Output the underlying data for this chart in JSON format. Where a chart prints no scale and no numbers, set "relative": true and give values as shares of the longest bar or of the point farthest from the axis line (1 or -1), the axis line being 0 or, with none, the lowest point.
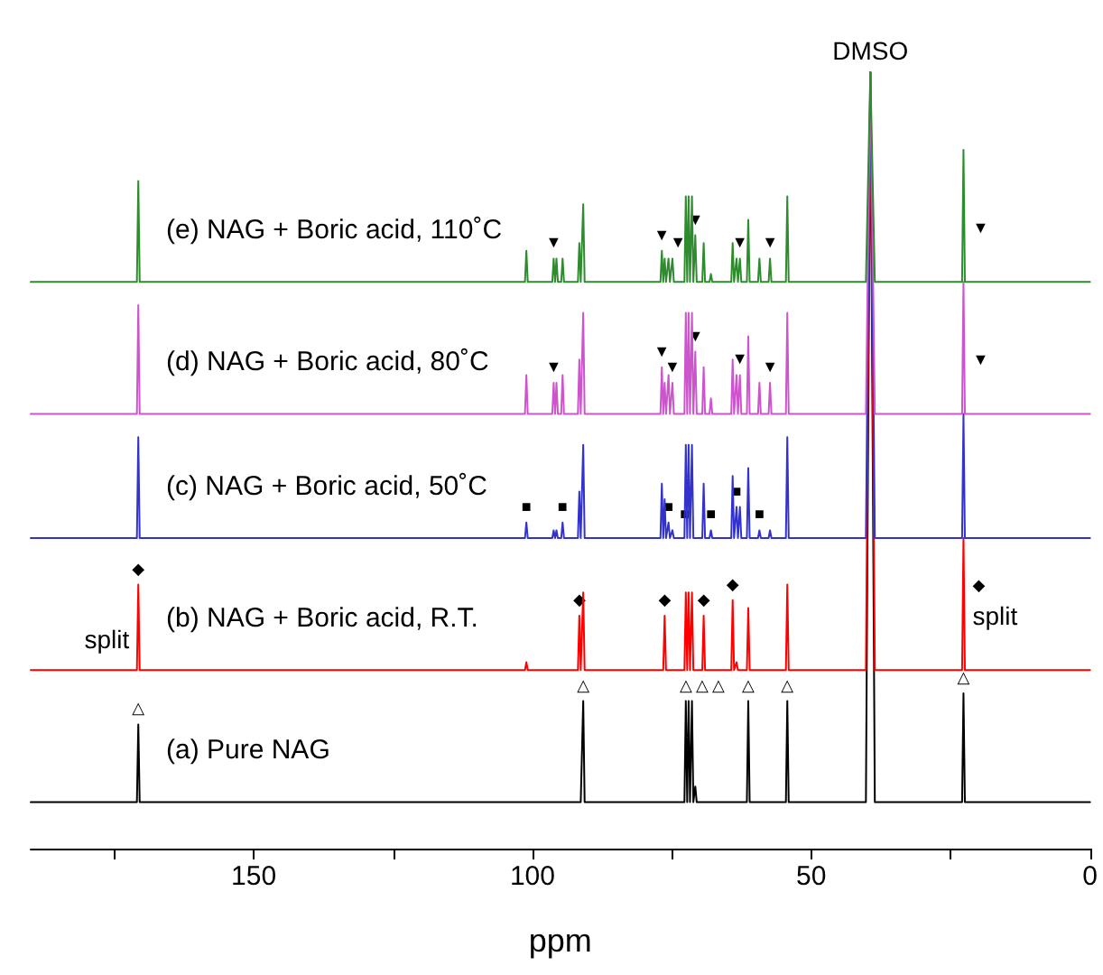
{
  "chart_data": {
    "type": "line",
    "relative": true,
    "xlabel": "ppm",
    "xlim": [
      190,
      0
    ],
    "xticks": [
      {
        "value": 175,
        "label": null
      },
      150,
      {
        "value": 125,
        "label": null
      },
      100,
      {
        "value": 75,
        "label": null
      },
      50,
      {
        "value": 25,
        "label": null
      },
      0
    ],
    "x": [
      190,
      170.95,
      170.7,
      170.45,
      101.35,
      101.1,
      100.85,
      96.45,
      96.2,
      95.95,
      95.95,
      95.7,
      95.45,
      94.85,
      94.6,
      94.35,
      91.85,
      91.6,
      91.35,
      91.15,
      90.9,
      90.65,
      77.05,
      76.8,
      76.55,
      76.55,
      76.3,
      76.05,
      75.85,
      75.6,
      75.35,
      75.15,
      74.9,
      74.65,
      72.75,
      72.5,
      72.25,
      72.25,
      72.0,
      71.75,
      71.65,
      71.4,
      71.15,
      71.05,
      70.8,
      70.55,
      69.55,
      69.3,
      69.05,
      68.25,
      68.0,
      67.75,
      64.35,
      64.1,
      63.85,
      63.65,
      63.4,
      63.15,
      63.05,
      62.8,
      62.55,
      61.55,
      61.3,
      61.05,
      59.55,
      59.3,
      59.05,
      57.65,
      57.4,
      57.15,
      54.55,
      54.3,
      54.05,
      40.2,
      39.4,
      38.6,
      22.95,
      22.7,
      22.45,
      0
    ],
    "series": [
      {
        "name": "(a) Pure NAG",
        "color": "#000000",
        "values": [
          0.06,
          0.06,
          0.16,
          0.06,
          0.06,
          0.06,
          0.06,
          0.06,
          0.06,
          0.06,
          0.06,
          0.06,
          0.06,
          0.06,
          0.06,
          0.06,
          0.06,
          0.06,
          0.06,
          0.06,
          0.19,
          0.06,
          0.06,
          0.06,
          0.06,
          0.06,
          0.06,
          0.06,
          0.06,
          0.06,
          0.06,
          0.06,
          0.06,
          0.06,
          0.06,
          0.19,
          0.06,
          0.06,
          0.19,
          0.06,
          0.06,
          0.19,
          0.06,
          0.06,
          0.08,
          0.06,
          0.06,
          0.06,
          0.06,
          0.06,
          0.06,
          0.06,
          0.06,
          0.06,
          0.06,
          0.06,
          0.06,
          0.06,
          0.06,
          0.06,
          0.06,
          0.06,
          0.19,
          0.06,
          0.06,
          0.06,
          0.06,
          0.06,
          0.06,
          0.06,
          0.06,
          0.19,
          0.06,
          0.06,
          1.0,
          0.06,
          0.06,
          0.2,
          0.06,
          0.06
        ]
      },
      {
        "name": "(b) NAG + Boric acid, R.T.",
        "color": "#ff0000",
        "values": [
          0.23,
          0.23,
          0.34,
          0.23,
          0.23,
          0.24,
          0.23,
          0.23,
          0.23,
          0.23,
          0.23,
          0.23,
          0.23,
          0.23,
          0.23,
          0.23,
          0.23,
          0.3,
          0.23,
          0.23,
          0.33,
          0.23,
          0.23,
          0.23,
          0.23,
          0.23,
          0.3,
          0.23,
          0.23,
          0.23,
          0.23,
          0.23,
          0.23,
          0.23,
          0.23,
          0.33,
          0.23,
          0.23,
          0.33,
          0.23,
          0.23,
          0.33,
          0.23,
          0.23,
          0.23,
          0.23,
          0.23,
          0.3,
          0.23,
          0.23,
          0.23,
          0.23,
          0.23,
          0.32,
          0.23,
          0.23,
          0.24,
          0.23,
          0.23,
          0.23,
          0.23,
          0.23,
          0.31,
          0.23,
          0.23,
          0.23,
          0.23,
          0.23,
          0.23,
          0.23,
          0.23,
          0.34,
          0.23,
          0.23,
          1.0,
          0.23,
          0.23,
          0.4,
          0.23,
          0.23
        ]
      },
      {
        "name": "(c) NAG + Boric acid, 50˚C",
        "color": "#3333cc",
        "values": [
          0.4,
          0.4,
          0.53,
          0.4,
          0.4,
          0.42,
          0.4,
          0.4,
          0.41,
          0.4,
          0.4,
          0.41,
          0.4,
          0.4,
          0.42,
          0.4,
          0.4,
          0.46,
          0.4,
          0.4,
          0.52,
          0.4,
          0.4,
          0.47,
          0.4,
          0.4,
          0.45,
          0.4,
          0.4,
          0.42,
          0.4,
          0.4,
          0.41,
          0.4,
          0.4,
          0.52,
          0.4,
          0.4,
          0.52,
          0.4,
          0.4,
          0.52,
          0.4,
          0.4,
          0.4,
          0.4,
          0.4,
          0.47,
          0.4,
          0.4,
          0.41,
          0.4,
          0.4,
          0.48,
          0.4,
          0.4,
          0.44,
          0.4,
          0.4,
          0.44,
          0.4,
          0.4,
          0.49,
          0.4,
          0.4,
          0.41,
          0.4,
          0.4,
          0.41,
          0.4,
          0.4,
          0.53,
          0.4,
          0.4,
          1.0,
          0.4,
          0.4,
          0.56,
          0.4,
          0.4
        ]
      },
      {
        "name": "(d) NAG + Boric acid, 80˚C",
        "color": "#cc55cc",
        "values": [
          0.56,
          0.56,
          0.7,
          0.56,
          0.56,
          0.61,
          0.56,
          0.56,
          0.6,
          0.56,
          0.56,
          0.6,
          0.56,
          0.56,
          0.61,
          0.56,
          0.56,
          0.63,
          0.56,
          0.56,
          0.69,
          0.56,
          0.56,
          0.62,
          0.56,
          0.56,
          0.6,
          0.56,
          0.56,
          0.61,
          0.56,
          0.56,
          0.6,
          0.56,
          0.56,
          0.69,
          0.56,
          0.56,
          0.69,
          0.56,
          0.56,
          0.69,
          0.56,
          0.56,
          0.64,
          0.56,
          0.56,
          0.62,
          0.56,
          0.56,
          0.58,
          0.56,
          0.56,
          0.63,
          0.56,
          0.56,
          0.61,
          0.56,
          0.56,
          0.61,
          0.56,
          0.56,
          0.66,
          0.56,
          0.56,
          0.6,
          0.56,
          0.56,
          0.6,
          0.56,
          0.56,
          0.69,
          0.56,
          0.56,
          1.0,
          0.56,
          0.56,
          0.73,
          0.56,
          0.56
        ]
      },
      {
        "name": "(e) NAG + Boric acid, 110˚C",
        "color": "#2e8b2e",
        "values": [
          0.73,
          0.73,
          0.86,
          0.73,
          0.73,
          0.77,
          0.73,
          0.73,
          0.76,
          0.73,
          0.73,
          0.76,
          0.73,
          0.73,
          0.76,
          0.73,
          0.73,
          0.78,
          0.73,
          0.73,
          0.83,
          0.73,
          0.73,
          0.77,
          0.73,
          0.73,
          0.76,
          0.73,
          0.73,
          0.76,
          0.73,
          0.73,
          0.76,
          0.73,
          0.73,
          0.84,
          0.73,
          0.73,
          0.84,
          0.73,
          0.73,
          0.84,
          0.73,
          0.73,
          0.79,
          0.73,
          0.73,
          0.78,
          0.73,
          0.73,
          0.74,
          0.73,
          0.73,
          0.78,
          0.73,
          0.73,
          0.76,
          0.73,
          0.73,
          0.76,
          0.73,
          0.73,
          0.81,
          0.73,
          0.73,
          0.76,
          0.73,
          0.73,
          0.76,
          0.73,
          0.73,
          0.84,
          0.73,
          0.73,
          1.0,
          0.73,
          0.73,
          0.9,
          0.73,
          0.73
        ]
      }
    ],
    "annotations": [
      {
        "text": "DMSO",
        "x": 39.4,
        "y": 1.0
      },
      {
        "text": "split",
        "x": 170.7,
        "y": 0.27
      },
      {
        "text": "split",
        "x": 22.7,
        "y": 0.3
      },
      {
        "text": "△",
        "x": 170.7,
        "y": 0.16
      },
      {
        "text": "△",
        "x": 90.9,
        "y": 0.19
      },
      {
        "text": "△",
        "x": 72.5,
        "y": 0.19
      },
      {
        "text": "△",
        "x": 72.0,
        "y": 0.19
      },
      {
        "text": "△",
        "x": 71.4,
        "y": 0.19
      },
      {
        "text": "△",
        "x": 61.3,
        "y": 0.19
      },
      {
        "text": "△",
        "x": 54.3,
        "y": 0.19
      },
      {
        "text": "△",
        "x": 22.7,
        "y": 0.2
      },
      {
        "text": "◆",
        "x": 170.7,
        "y": 0.34
      },
      {
        "text": "◆",
        "x": 91.6,
        "y": 0.3
      },
      {
        "text": "◆",
        "x": 76.3,
        "y": 0.3
      },
      {
        "text": "◆",
        "x": 69.3,
        "y": 0.3
      },
      {
        "text": "◆",
        "x": 64.1,
        "y": 0.32
      },
      {
        "text": "◆",
        "x": 22.7,
        "y": 0.34
      },
      {
        "text": "■",
        "x": 101.1,
        "y": 0.42
      },
      {
        "text": "■",
        "x": 94.6,
        "y": 0.42
      },
      {
        "text": "■",
        "x": 75.6,
        "y": 0.42
      },
      {
        "text": "■",
        "x": 74.9,
        "y": 0.41
      },
      {
        "text": "■",
        "x": 68.0,
        "y": 0.41
      },
      {
        "text": "■",
        "x": 63.4,
        "y": 0.44
      },
      {
        "text": "■",
        "x": 59.3,
        "y": 0.41
      },
      {
        "text": "▼",
        "x": 96.2,
        "y": 0.6
      },
      {
        "text": "▼",
        "x": 76.8,
        "y": 0.62
      },
      {
        "text": "▼",
        "x": 74.9,
        "y": 0.6
      },
      {
        "text": "▼",
        "x": 70.8,
        "y": 0.64
      },
      {
        "text": "▼",
        "x": 62.8,
        "y": 0.61
      },
      {
        "text": "▼",
        "x": 57.4,
        "y": 0.6
      },
      {
        "text": "▼",
        "x": 22.7,
        "y": 0.63
      },
      {
        "text": "▼",
        "x": 96.2,
        "y": 0.76
      },
      {
        "text": "▼",
        "x": 76.8,
        "y": 0.77
      },
      {
        "text": "▼",
        "x": 74.9,
        "y": 0.76
      },
      {
        "text": "▼",
        "x": 70.8,
        "y": 0.79
      },
      {
        "text": "▼",
        "x": 62.8,
        "y": 0.76
      },
      {
        "text": "▼",
        "x": 57.4,
        "y": 0.76
      },
      {
        "text": "▼",
        "x": 22.7,
        "y": 0.8
      }
    ]
  }
}
